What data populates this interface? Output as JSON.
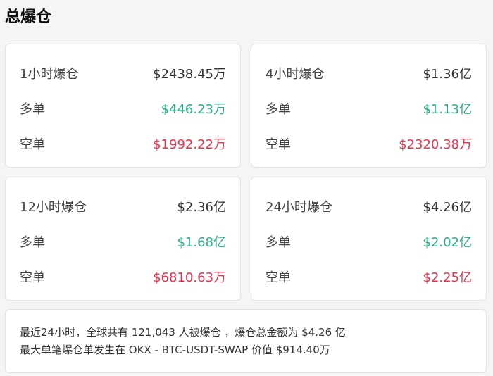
{
  "title": "总爆仓",
  "colors": {
    "long": "#26b086",
    "short": "#e8314b"
  },
  "cards": [
    {
      "label": "1小时爆仓",
      "total": "$2438.45万",
      "long_label": "多单",
      "long": "$446.23万",
      "short_label": "空单",
      "short": "$1992.22万"
    },
    {
      "label": "4小时爆仓",
      "total": "$1.36亿",
      "long_label": "多单",
      "long": "$1.13亿",
      "short_label": "空单",
      "short": "$2320.38万"
    },
    {
      "label": "12小时爆仓",
      "total": "$2.36亿",
      "long_label": "多单",
      "long": "$1.68亿",
      "short_label": "空单",
      "short": "$6810.63万"
    },
    {
      "label": "24小时爆仓",
      "total": "$4.26亿",
      "long_label": "多单",
      "long": "$2.02亿",
      "short_label": "空单",
      "short": "$2.25亿"
    }
  ],
  "summary": {
    "line1": "最近24小时，全球共有 121,043 人被爆仓 ，爆仓总金额为 $4.26 亿",
    "line2": "最大单笔爆仓单发生在 OKX - BTC-USDT-SWAP 价值 $914.40万"
  }
}
